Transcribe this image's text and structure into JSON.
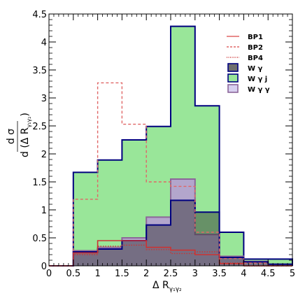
{
  "chart_data": {
    "type": "histogram",
    "bin_edges": [
      0,
      0.5,
      1,
      1.5,
      2,
      2.5,
      3,
      3.5,
      4,
      4.5,
      5
    ],
    "xlim": [
      0,
      5
    ],
    "ylim": [
      0,
      4.5
    ],
    "x_ticks": [
      "0",
      "0.5",
      "1",
      "1.5",
      "2",
      "2.5",
      "3",
      "3.5",
      "4",
      "4.5",
      "5"
    ],
    "y_ticks": [
      "0",
      "0.5",
      "1",
      "1.5",
      "2",
      "2.5",
      "3",
      "3.5",
      "4",
      "4.5"
    ],
    "xlabel": {
      "main": "Δ R",
      "sub": "γ₁γ₂"
    },
    "ylabel": {
      "numerator": "d σ",
      "denominator_main": "d (Δ R",
      "denominator_sub": "γ₁γ₂",
      "denominator_close": ")"
    },
    "legend_position": "top-right",
    "series": [
      {
        "name": "W γ j",
        "style": "filled",
        "fill": "#99e699",
        "stroke": "#00007f",
        "values": [
          0,
          1.67,
          1.89,
          2.25,
          2.49,
          4.28,
          2.86,
          0.6,
          0.12,
          0.12
        ]
      },
      {
        "name": "W γ γ",
        "style": "filled",
        "fill": "#b3a6cc",
        "stroke": "#8c6699",
        "values": [
          0,
          0.27,
          0.33,
          0.5,
          0.87,
          1.55,
          0.56,
          0.17,
          0.08,
          0.02
        ]
      },
      {
        "name": "W γ",
        "style": "filled",
        "fill": "#2b2b2b",
        "fill_opacity": 0.45,
        "stroke": "#00007f",
        "values": [
          0,
          0.25,
          0.3,
          0.45,
          0.73,
          1.17,
          0.96,
          0.15,
          0.07,
          0.03
        ]
      },
      {
        "name": "BP2",
        "style": "dashed",
        "stroke": "#e06666",
        "values": [
          0,
          1.19,
          3.27,
          2.53,
          1.5,
          1.42,
          0.6,
          0.13,
          0.05,
          0.0
        ]
      },
      {
        "name": "BP4",
        "style": "dotted",
        "stroke": "#cc3333",
        "values": [
          0,
          0.2,
          0.35,
          0.37,
          0.29,
          0.22,
          0.25,
          0.05,
          0.0,
          0.0
        ]
      },
      {
        "name": "BP1",
        "style": "solid",
        "stroke": "#cc3333",
        "values": [
          0,
          0.23,
          0.45,
          0.45,
          0.33,
          0.28,
          0.2,
          0.04,
          0.0,
          0.0
        ]
      }
    ],
    "legend": [
      {
        "label": "BP1",
        "kind": "line-solid",
        "color": "#e06666"
      },
      {
        "label": "BP2",
        "kind": "line-dashed",
        "color": "#e06666"
      },
      {
        "label": "BP4",
        "kind": "line-dotted",
        "color": "#cc3333"
      },
      {
        "label": "W γ",
        "kind": "box",
        "fill": "#6e6e6e",
        "stroke": "#00007f"
      },
      {
        "label": "W γ j",
        "kind": "box",
        "fill": "#99e699",
        "stroke": "#00007f"
      },
      {
        "label": "W γ γ",
        "kind": "box",
        "fill": "#d8d0f0",
        "stroke": "#8c6699"
      }
    ]
  }
}
